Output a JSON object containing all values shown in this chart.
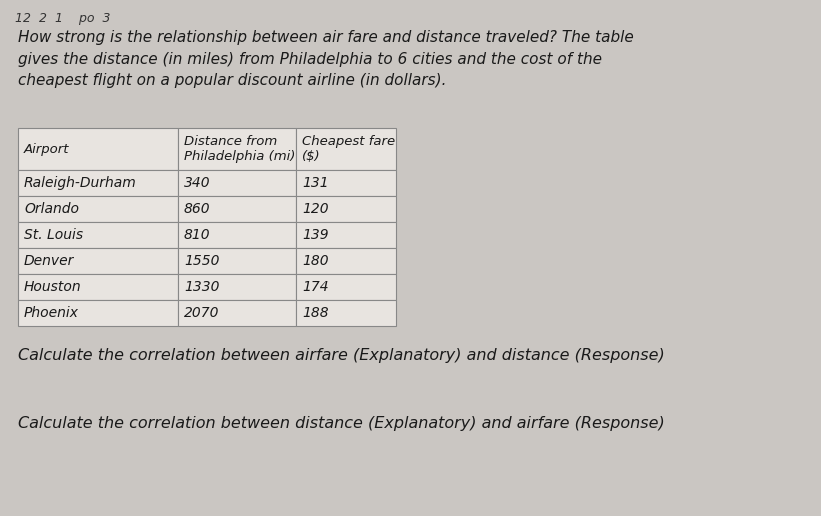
{
  "intro_text": "How strong is the relationship between air fare and distance traveled? The table\ngives the distance (in miles) from Philadelphia to 6 cities and the cost of the\ncheapest flight on a popular discount airline (in dollars).",
  "header_col0": "Airport",
  "header_col1": "Distance from\nPhiladelphia (mi)",
  "header_col2": "Cheapest fare\n($)",
  "rows": [
    [
      "Raleigh-Durham",
      "340",
      "131"
    ],
    [
      "Orlando",
      "860",
      "120"
    ],
    [
      "St. Louis",
      "810",
      "139"
    ],
    [
      "Denver",
      "1550",
      "180"
    ],
    [
      "Houston",
      "1330",
      "174"
    ],
    [
      "Phoenix",
      "2070",
      "188"
    ]
  ],
  "question1": "Calculate the correlation between airfare (Explanatory) and distance (Response)",
  "question2": "Calculate the correlation between distance (Explanatory) and airfare (Response)",
  "bg_color": "#cac6c2",
  "cell_color": "#e8e4e0",
  "text_color": "#1a1a1a",
  "border_color": "#888888",
  "top_scribble": "12  2  1    po  3"
}
